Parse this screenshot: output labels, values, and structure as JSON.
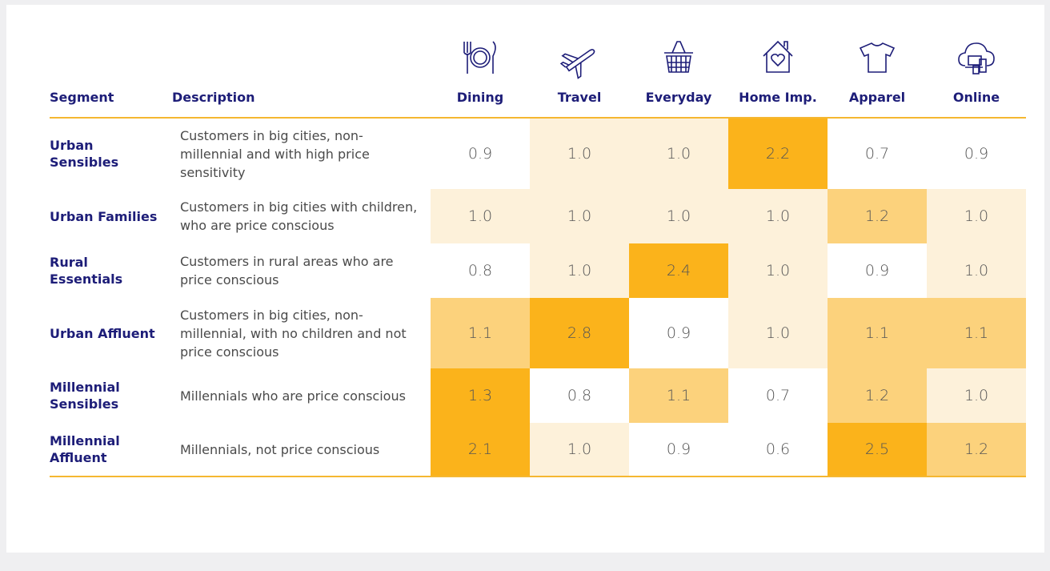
{
  "table": {
    "headers": [
      "Segment",
      "Description",
      "Dining",
      "Travel",
      "Everyday",
      "Home Imp.",
      "Apparel",
      "Online"
    ],
    "rows": [
      [
        "Urban Sensibles",
        "Customers in big cities, non-millennial and with high price sensitivity",
        "0.9",
        "1.0",
        "1.0",
        "2.2",
        "0.7",
        "0.9"
      ],
      [
        "Urban Families",
        "Customers in big cities with children, who are price conscious",
        "1.0",
        "1.0",
        "1.0",
        "1.0",
        "1.2",
        "1.0"
      ],
      [
        "Rural Essentials",
        "Customers in rural areas who are price conscious",
        "0.8",
        "1.0",
        "2.4",
        "1.0",
        "0.9",
        "1.0"
      ],
      [
        "Urban Affluent",
        "Customers in big cities, non-millennial, with no children and not price conscious",
        "1.1",
        "2.8",
        "0.9",
        "1.0",
        "1.1",
        "1.1"
      ],
      [
        "Millennial Sensibles",
        "Millennials who are price conscious",
        "1.3",
        "0.8",
        "1.1",
        "0.7",
        "1.2",
        "1.0"
      ],
      [
        "Millennial Affluent",
        "Millennials, not price conscious",
        "2.1",
        "1.0",
        "0.9",
        "0.6",
        "2.5",
        "1.2"
      ]
    ],
    "cell_colors": [
      [
        "#ffffff",
        "#fdf1da",
        "#fdf1da",
        "#fbb31b",
        "#ffffff",
        "#ffffff"
      ],
      [
        "#fdf1da",
        "#fdf1da",
        "#fdf1da",
        "#fdf1da",
        "#fcd27c",
        "#fdf1da"
      ],
      [
        "#ffffff",
        "#fdf1da",
        "#fbb31b",
        "#fdf1da",
        "#ffffff",
        "#fdf1da"
      ],
      [
        "#fcd27c",
        "#fbb31b",
        "#ffffff",
        "#fdf1da",
        "#fcd27c",
        "#fcd27c"
      ],
      [
        "#fbb31b",
        "#ffffff",
        "#fcd27c",
        "#ffffff",
        "#fcd27c",
        "#fdf1da"
      ],
      [
        "#fbb31b",
        "#fdf1da",
        "#ffffff",
        "#ffffff",
        "#fbb31b",
        "#fcd27c"
      ]
    ]
  }
}
